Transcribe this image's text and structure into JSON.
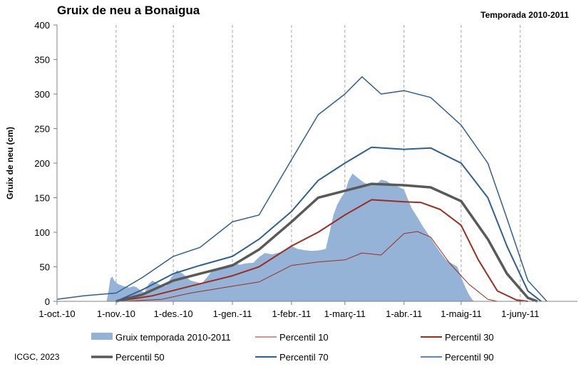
{
  "chart_data": {
    "type": "area",
    "title": "Gruix de neu a Bonaigua",
    "subtitle": "Temporada 2010-2011",
    "ylabel": "Gruix de neu (cm)",
    "xlabel": "",
    "ylim": [
      0,
      400
    ],
    "yticks": [
      0,
      50,
      100,
      150,
      200,
      250,
      300,
      350,
      400
    ],
    "x_start": "2010-10-01",
    "x_end": "2011-06-30",
    "xticks": [
      {
        "date": "2010-10-01",
        "label": "1-oct.-10"
      },
      {
        "date": "2010-11-01",
        "label": "1-nov.-10"
      },
      {
        "date": "2010-12-01",
        "label": "1-des.-10"
      },
      {
        "date": "2011-01-01",
        "label": "1-gen.-11"
      },
      {
        "date": "2011-02-01",
        "label": "1-febr.-11"
      },
      {
        "date": "2011-03-01",
        "label": "1-març-11"
      },
      {
        "date": "2011-04-01",
        "label": "1-abr.-11"
      },
      {
        "date": "2011-05-01",
        "label": "1-maig-11"
      },
      {
        "date": "2011-06-01",
        "label": "1-juny-11"
      }
    ],
    "grid": "vertical-dashed",
    "legend_position": "bottom",
    "credit": "ICGC, 2023",
    "series": [
      {
        "name": "Gruix temporada 2010-2011",
        "kind": "area",
        "color": "#95b3d7",
        "points": [
          [
            "2010-10-27",
            0
          ],
          [
            "2010-10-28",
            15
          ],
          [
            "2010-10-29",
            33
          ],
          [
            "2010-10-30",
            36
          ],
          [
            "2010-10-31",
            30
          ],
          [
            "2010-11-02",
            25
          ],
          [
            "2010-11-05",
            22
          ],
          [
            "2010-11-08",
            20
          ],
          [
            "2010-11-10",
            22
          ],
          [
            "2010-11-12",
            20
          ],
          [
            "2010-11-14",
            15
          ],
          [
            "2010-11-16",
            13
          ],
          [
            "2010-11-18",
            25
          ],
          [
            "2010-11-20",
            30
          ],
          [
            "2010-11-22",
            27
          ],
          [
            "2010-11-24",
            24
          ],
          [
            "2010-11-27",
            22
          ],
          [
            "2010-11-30",
            35
          ],
          [
            "2010-12-03",
            45
          ],
          [
            "2010-12-06",
            40
          ],
          [
            "2010-12-08",
            35
          ],
          [
            "2010-12-10",
            30
          ],
          [
            "2010-12-13",
            28
          ],
          [
            "2010-12-16",
            26
          ],
          [
            "2010-12-19",
            36
          ],
          [
            "2010-12-21",
            43
          ],
          [
            "2010-12-24",
            46
          ],
          [
            "2010-12-27",
            50
          ],
          [
            "2010-12-30",
            53
          ],
          [
            "2011-01-02",
            55
          ],
          [
            "2011-01-05",
            53
          ],
          [
            "2011-01-08",
            55
          ],
          [
            "2011-01-12",
            56
          ],
          [
            "2011-01-15",
            64
          ],
          [
            "2011-01-18",
            70
          ],
          [
            "2011-01-22",
            68
          ],
          [
            "2011-01-26",
            71
          ],
          [
            "2011-01-29",
            75
          ],
          [
            "2011-02-01",
            80
          ],
          [
            "2011-02-04",
            76
          ],
          [
            "2011-02-08",
            74
          ],
          [
            "2011-02-12",
            73
          ],
          [
            "2011-02-16",
            74
          ],
          [
            "2011-02-19",
            76
          ],
          [
            "2011-02-21",
            100
          ],
          [
            "2011-02-23",
            125
          ],
          [
            "2011-02-25",
            140
          ],
          [
            "2011-02-27",
            150
          ],
          [
            "2011-03-01",
            158
          ],
          [
            "2011-03-03",
            175
          ],
          [
            "2011-03-05",
            185
          ],
          [
            "2011-03-08",
            178
          ],
          [
            "2011-03-11",
            172
          ],
          [
            "2011-03-14",
            168
          ],
          [
            "2011-03-17",
            168
          ],
          [
            "2011-03-20",
            176
          ],
          [
            "2011-03-23",
            174
          ],
          [
            "2011-03-26",
            168
          ],
          [
            "2011-03-29",
            166
          ],
          [
            "2011-04-01",
            162
          ],
          [
            "2011-04-03",
            148
          ],
          [
            "2011-04-05",
            135
          ],
          [
            "2011-04-08",
            122
          ],
          [
            "2011-04-11",
            108
          ],
          [
            "2011-04-14",
            96
          ],
          [
            "2011-04-17",
            83
          ],
          [
            "2011-04-20",
            71
          ],
          [
            "2011-04-23",
            60
          ],
          [
            "2011-04-26",
            55
          ],
          [
            "2011-04-29",
            50
          ],
          [
            "2011-05-01",
            35
          ],
          [
            "2011-05-03",
            22
          ],
          [
            "2011-05-05",
            10
          ],
          [
            "2011-05-07",
            2
          ],
          [
            "2011-05-08",
            0
          ]
        ]
      },
      {
        "name": "Percentil 10",
        "kind": "line",
        "color": "#9b2d1f",
        "width": 1,
        "points": [
          [
            "2010-11-05",
            0
          ],
          [
            "2010-11-25",
            3
          ],
          [
            "2010-12-10",
            12
          ],
          [
            "2011-01-01",
            22
          ],
          [
            "2011-01-15",
            28
          ],
          [
            "2011-02-01",
            52
          ],
          [
            "2011-02-15",
            57
          ],
          [
            "2011-03-01",
            60
          ],
          [
            "2011-03-10",
            70
          ],
          [
            "2011-03-20",
            67
          ],
          [
            "2011-04-01",
            98
          ],
          [
            "2011-04-08",
            101
          ],
          [
            "2011-04-15",
            93
          ],
          [
            "2011-04-25",
            55
          ],
          [
            "2011-05-05",
            25
          ],
          [
            "2011-05-15",
            3
          ],
          [
            "2011-05-20",
            0
          ]
        ]
      },
      {
        "name": "Percentil 30",
        "kind": "line",
        "color": "#9b2d1f",
        "width": 2,
        "points": [
          [
            "2010-11-01",
            0
          ],
          [
            "2010-11-20",
            8
          ],
          [
            "2010-12-10",
            22
          ],
          [
            "2011-01-01",
            37
          ],
          [
            "2011-01-15",
            50
          ],
          [
            "2011-02-01",
            80
          ],
          [
            "2011-02-15",
            100
          ],
          [
            "2011-03-01",
            125
          ],
          [
            "2011-03-15",
            147
          ],
          [
            "2011-04-01",
            144
          ],
          [
            "2011-04-10",
            143
          ],
          [
            "2011-04-20",
            133
          ],
          [
            "2011-05-01",
            110
          ],
          [
            "2011-05-10",
            60
          ],
          [
            "2011-05-20",
            15
          ],
          [
            "2011-05-30",
            2
          ],
          [
            "2011-06-05",
            0
          ]
        ]
      },
      {
        "name": "Percentil 50",
        "kind": "line",
        "color": "#595959",
        "width": 3.5,
        "points": [
          [
            "2010-11-01",
            0
          ],
          [
            "2010-11-15",
            10
          ],
          [
            "2010-12-01",
            30
          ],
          [
            "2010-12-15",
            40
          ],
          [
            "2011-01-01",
            52
          ],
          [
            "2011-01-15",
            75
          ],
          [
            "2011-02-01",
            115
          ],
          [
            "2011-02-15",
            150
          ],
          [
            "2011-03-01",
            160
          ],
          [
            "2011-03-15",
            170
          ],
          [
            "2011-04-01",
            168
          ],
          [
            "2011-04-15",
            165
          ],
          [
            "2011-05-01",
            145
          ],
          [
            "2011-05-15",
            90
          ],
          [
            "2011-05-25",
            40
          ],
          [
            "2011-06-05",
            5
          ],
          [
            "2011-06-10",
            0
          ]
        ]
      },
      {
        "name": "Percentil 70",
        "kind": "line",
        "color": "#2f5f93",
        "width": 2,
        "points": [
          [
            "2010-11-01",
            0
          ],
          [
            "2010-11-15",
            17
          ],
          [
            "2010-12-01",
            40
          ],
          [
            "2010-12-15",
            52
          ],
          [
            "2011-01-01",
            65
          ],
          [
            "2011-01-15",
            90
          ],
          [
            "2011-02-01",
            130
          ],
          [
            "2011-02-15",
            175
          ],
          [
            "2011-03-01",
            200
          ],
          [
            "2011-03-15",
            223
          ],
          [
            "2011-04-01",
            220
          ],
          [
            "2011-04-15",
            222
          ],
          [
            "2011-05-01",
            200
          ],
          [
            "2011-05-15",
            150
          ],
          [
            "2011-05-25",
            80
          ],
          [
            "2011-06-05",
            15
          ],
          [
            "2011-06-12",
            0
          ]
        ]
      },
      {
        "name": "Percentil 90",
        "kind": "line",
        "color": "#2f5f93",
        "width": 1.5,
        "points": [
          [
            "2010-10-01",
            3
          ],
          [
            "2010-10-15",
            8
          ],
          [
            "2010-11-01",
            12
          ],
          [
            "2010-11-15",
            35
          ],
          [
            "2010-12-01",
            65
          ],
          [
            "2010-12-15",
            78
          ],
          [
            "2011-01-01",
            115
          ],
          [
            "2011-01-15",
            125
          ],
          [
            "2011-02-01",
            205
          ],
          [
            "2011-02-15",
            270
          ],
          [
            "2011-03-01",
            300
          ],
          [
            "2011-03-10",
            325
          ],
          [
            "2011-03-20",
            300
          ],
          [
            "2011-04-01",
            305
          ],
          [
            "2011-04-15",
            295
          ],
          [
            "2011-05-01",
            255
          ],
          [
            "2011-05-15",
            200
          ],
          [
            "2011-05-25",
            120
          ],
          [
            "2011-06-05",
            30
          ],
          [
            "2011-06-15",
            0
          ]
        ]
      }
    ]
  }
}
